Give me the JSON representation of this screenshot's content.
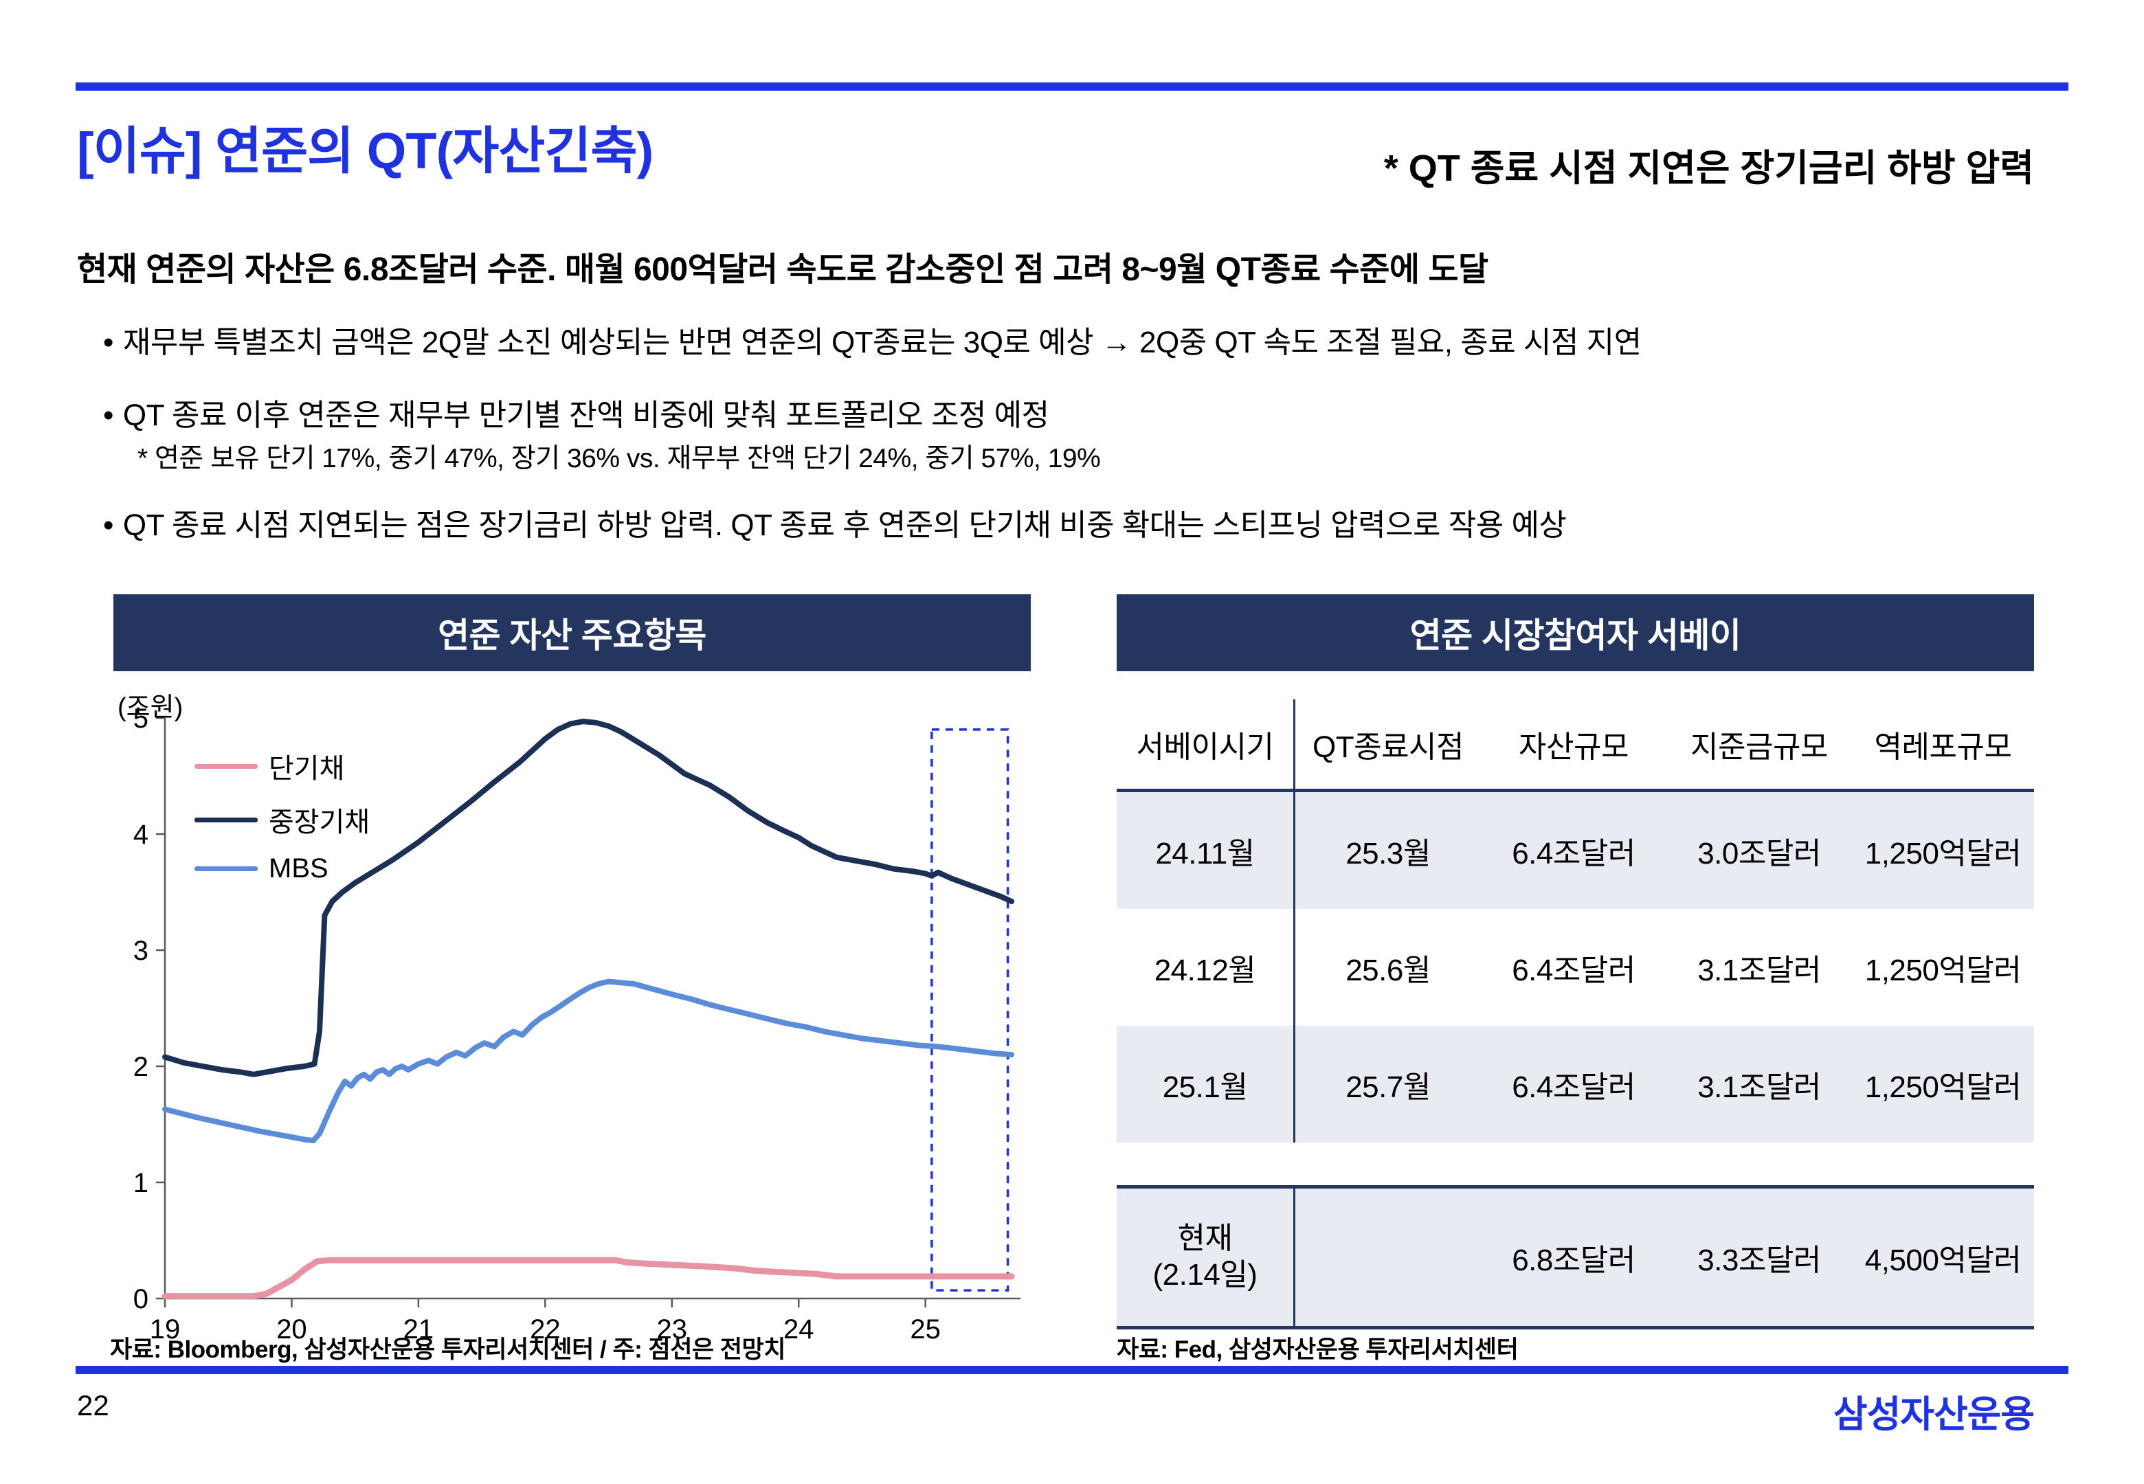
{
  "slide": {
    "title": "[이슈] 연준의 QT(자산긴축)",
    "header_note": "* QT 종료 시점 지연은 장기금리 하방 압력",
    "page_number": "22",
    "logo_text": "삼성자산운용"
  },
  "body": {
    "lead": "현재 연준의 자산은 6.8조달러 수준. 매월 600억달러 속도로 감소중인 점 고려 8~9월 QT종료 수준에 도달",
    "bullet_char": "•",
    "bullets": [
      "재무부 특별조치 금액은 2Q말 소진 예상되는 반면 연준의 QT종료는 3Q로 예상 → 2Q중 QT 속도 조절 필요, 종료 시점 지연",
      "QT 종료 이후 연준은 재무부 만기별 잔액 비중에 맞춰 포트폴리오 조정 예정",
      "QT 종료 시점 지연되는 점은 장기금리 하방 압력. QT 종료 후 연준의 단기채 비중 확대는 스티프닝 압력으로 작용 예상"
    ],
    "subnote": "*  연준 보유 단기 17%, 중기 47%, 장기 36% vs. 재무부 잔액 단기 24%, 중기 57%, 19%"
  },
  "left_panel": {
    "title": "연준 자산 주요항목",
    "unit_label": "(조원)",
    "source": "자료: Bloomberg, 삼성자산운용 투자리서치센터 / 주: 점선은 전망치"
  },
  "chart_data": {
    "type": "line",
    "title": "연준 자산 주요항목",
    "ylabel": "(조원)",
    "ylim": [
      0,
      5
    ],
    "xlim": [
      19,
      25.75
    ],
    "yticks": [
      0,
      1,
      2,
      3,
      4,
      5
    ],
    "xticks": [
      19,
      20,
      21,
      22,
      23,
      24,
      25
    ],
    "grid": false,
    "legend_position": "top-left",
    "note": "점선은 전망치",
    "forecast_box": {
      "x0": 25.05,
      "x1": 25.65,
      "y0": 0.07,
      "y1": 4.9
    },
    "series": [
      {
        "name": "단기채",
        "color": "#E893A4",
        "x": [
          19,
          19.7,
          19.8,
          19.9,
          20.0,
          20.1,
          20.2,
          20.3,
          22.55,
          22.65,
          22.8,
          23.0,
          23.2,
          23.35,
          23.5,
          23.65,
          23.8,
          24.0,
          24.15,
          24.3,
          24.6,
          25.0,
          25.68
        ],
        "values": [
          0.02,
          0.02,
          0.04,
          0.1,
          0.16,
          0.25,
          0.32,
          0.33,
          0.33,
          0.31,
          0.3,
          0.29,
          0.28,
          0.27,
          0.26,
          0.24,
          0.23,
          0.22,
          0.21,
          0.19,
          0.19,
          0.19,
          0.19
        ]
      },
      {
        "name": "중장기채",
        "color": "#1C2F55",
        "x": [
          19,
          19.15,
          19.3,
          19.45,
          19.6,
          19.7,
          19.8,
          19.95,
          20.1,
          20.18,
          20.22,
          20.26,
          20.32,
          20.4,
          20.5,
          20.65,
          20.8,
          21.0,
          21.2,
          21.4,
          21.6,
          21.8,
          22.0,
          22.1,
          22.2,
          22.3,
          22.4,
          22.5,
          22.6,
          22.75,
          22.9,
          23.0,
          23.1,
          23.2,
          23.3,
          23.45,
          23.6,
          23.75,
          23.9,
          24.0,
          24.1,
          24.2,
          24.3,
          24.45,
          24.6,
          24.75,
          24.9,
          25.0,
          25.05,
          25.1,
          25.2,
          25.35,
          25.5,
          25.6,
          25.68
        ],
        "values": [
          2.08,
          2.03,
          2.0,
          1.97,
          1.95,
          1.93,
          1.95,
          1.98,
          2.0,
          2.02,
          2.3,
          3.3,
          3.42,
          3.5,
          3.58,
          3.68,
          3.78,
          3.93,
          4.1,
          4.27,
          4.45,
          4.62,
          4.82,
          4.9,
          4.95,
          4.97,
          4.96,
          4.93,
          4.88,
          4.78,
          4.68,
          4.6,
          4.52,
          4.47,
          4.42,
          4.32,
          4.2,
          4.1,
          4.02,
          3.97,
          3.9,
          3.85,
          3.8,
          3.77,
          3.74,
          3.7,
          3.68,
          3.66,
          3.64,
          3.67,
          3.62,
          3.56,
          3.5,
          3.46,
          3.42
        ]
      },
      {
        "name": "MBS",
        "color": "#5B8CD9",
        "x": [
          19,
          19.25,
          19.5,
          19.75,
          20.0,
          20.1,
          20.17,
          20.22,
          20.3,
          20.37,
          20.42,
          20.47,
          20.52,
          20.57,
          20.62,
          20.67,
          20.72,
          20.77,
          20.82,
          20.87,
          20.92,
          21.0,
          21.08,
          21.15,
          21.22,
          21.3,
          21.37,
          21.45,
          21.52,
          21.6,
          21.67,
          21.75,
          21.82,
          21.9,
          21.97,
          22.05,
          22.12,
          22.2,
          22.27,
          22.35,
          22.42,
          22.5,
          22.6,
          22.7,
          22.8,
          22.9,
          23.0,
          23.15,
          23.3,
          23.45,
          23.6,
          23.75,
          23.9,
          24.05,
          24.2,
          24.35,
          24.5,
          24.65,
          24.8,
          24.95,
          25.1,
          25.25,
          25.4,
          25.55,
          25.68
        ],
        "values": [
          1.63,
          1.56,
          1.5,
          1.44,
          1.39,
          1.37,
          1.36,
          1.42,
          1.62,
          1.78,
          1.87,
          1.83,
          1.9,
          1.93,
          1.89,
          1.95,
          1.97,
          1.93,
          1.98,
          2.0,
          1.97,
          2.02,
          2.05,
          2.02,
          2.08,
          2.12,
          2.09,
          2.16,
          2.2,
          2.17,
          2.25,
          2.3,
          2.27,
          2.36,
          2.42,
          2.47,
          2.52,
          2.58,
          2.63,
          2.68,
          2.71,
          2.73,
          2.72,
          2.71,
          2.68,
          2.65,
          2.62,
          2.58,
          2.53,
          2.49,
          2.45,
          2.41,
          2.37,
          2.34,
          2.3,
          2.27,
          2.24,
          2.22,
          2.2,
          2.18,
          2.17,
          2.15,
          2.13,
          2.11,
          2.1
        ]
      }
    ]
  },
  "right_panel": {
    "title": "연준 시장참여자 서베이",
    "source": "자료: Fed, 삼성자산운용 투자리서치센터",
    "table": {
      "headers": [
        "서베이시기",
        "QT종료시점",
        "자산규모",
        "지준금규모",
        "역레포규모"
      ],
      "rows": [
        [
          "24.11월",
          "25.3월",
          "6.4조달러",
          "3.0조달러",
          "1,250억달러"
        ],
        [
          "24.12월",
          "25.6월",
          "6.4조달러",
          "3.1조달러",
          "1,250억달러"
        ],
        [
          "25.1월",
          "25.7월",
          "6.4조달러",
          "3.1조달러",
          "1,250억달러"
        ]
      ],
      "current_row": {
        "period_line1": "현재",
        "period_line2": "(2.14일)",
        "qt_end": "",
        "assets": "6.8조달러",
        "reserves": "3.3조달러",
        "rrp": "4,500억달러"
      }
    }
  },
  "colors": {
    "accent_blue": "#1E32E0",
    "panel_navy": "#24365F",
    "row_shade": "#E9EBF2",
    "series_short": "#E893A4",
    "series_mid_long": "#1C2F55",
    "series_mbs": "#5B8CD9"
  }
}
